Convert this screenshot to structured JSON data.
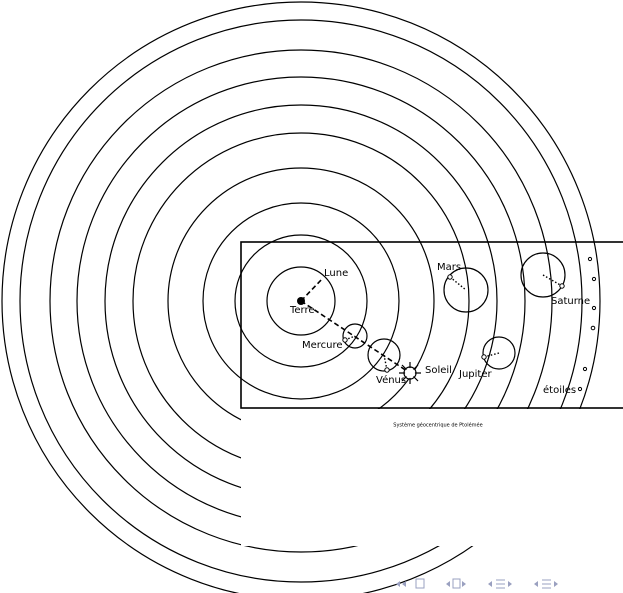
{
  "caption": "Système géocentrique de Ptolémée",
  "labels": {
    "lune": "Lune",
    "terre": "Terre",
    "mercure": "Mercure",
    "venus": "Vénus",
    "soleil": "Soleil",
    "mars": "Mars",
    "jupiter": "Jupiter",
    "saturne": "Saturne",
    "etoiles": "étoiles"
  }
}
